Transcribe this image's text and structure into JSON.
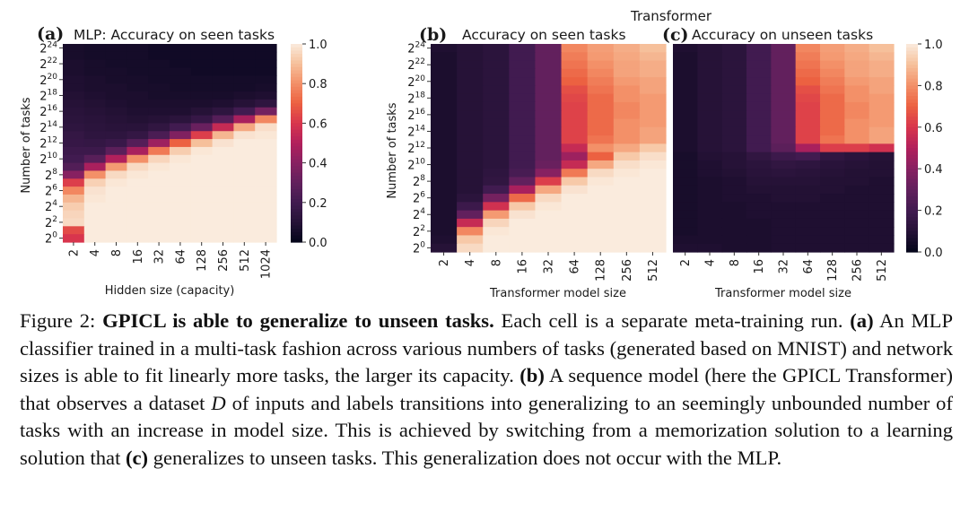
{
  "suptitle": "Transformer",
  "chart_data": [
    {
      "type": "heatmap",
      "panel": "(a)",
      "title": "MLP: Accuracy on seen tasks",
      "xlabel": "Hidden size (capacity)",
      "ylabel": "Number of tasks",
      "x_ticks": [
        "2",
        "4",
        "8",
        "16",
        "32",
        "64",
        "128",
        "256",
        "512",
        "1024"
      ],
      "y_tick_exponents": [
        "24",
        "22",
        "20",
        "18",
        "16",
        "14",
        "12",
        "10",
        "8",
        "6",
        "4",
        "2",
        "0"
      ],
      "y_tick_base": "2",
      "rows": 25,
      "cols": 10,
      "values": [
        [
          0.06,
          0.05,
          0.05,
          0.05,
          0.04,
          0.04,
          0.04,
          0.04,
          0.04,
          0.04
        ],
        [
          0.06,
          0.05,
          0.05,
          0.05,
          0.04,
          0.04,
          0.04,
          0.04,
          0.04,
          0.04
        ],
        [
          0.07,
          0.06,
          0.05,
          0.05,
          0.05,
          0.04,
          0.04,
          0.04,
          0.04,
          0.04
        ],
        [
          0.07,
          0.06,
          0.06,
          0.05,
          0.05,
          0.05,
          0.04,
          0.04,
          0.04,
          0.04
        ],
        [
          0.08,
          0.07,
          0.06,
          0.06,
          0.05,
          0.05,
          0.05,
          0.05,
          0.05,
          0.05
        ],
        [
          0.08,
          0.07,
          0.07,
          0.06,
          0.06,
          0.05,
          0.05,
          0.05,
          0.05,
          0.06
        ],
        [
          0.09,
          0.08,
          0.07,
          0.07,
          0.06,
          0.06,
          0.06,
          0.06,
          0.07,
          0.08
        ],
        [
          0.1,
          0.09,
          0.08,
          0.07,
          0.07,
          0.07,
          0.07,
          0.08,
          0.1,
          0.13
        ],
        [
          0.11,
          0.1,
          0.09,
          0.08,
          0.08,
          0.08,
          0.1,
          0.13,
          0.2,
          0.35
        ],
        [
          0.12,
          0.11,
          0.1,
          0.09,
          0.1,
          0.12,
          0.16,
          0.26,
          0.48,
          0.78
        ],
        [
          0.13,
          0.12,
          0.11,
          0.11,
          0.14,
          0.2,
          0.32,
          0.55,
          0.85,
          0.97
        ],
        [
          0.15,
          0.13,
          0.13,
          0.15,
          0.23,
          0.38,
          0.62,
          0.88,
          0.98,
          0.99
        ],
        [
          0.16,
          0.15,
          0.17,
          0.26,
          0.45,
          0.7,
          0.9,
          0.98,
          1.0,
          1.0
        ],
        [
          0.18,
          0.18,
          0.28,
          0.48,
          0.75,
          0.93,
          0.99,
          1.0,
          1.0,
          1.0
        ],
        [
          0.2,
          0.27,
          0.5,
          0.8,
          0.95,
          0.99,
          1.0,
          1.0,
          1.0,
          1.0
        ],
        [
          0.25,
          0.48,
          0.82,
          0.96,
          0.99,
          1.0,
          1.0,
          1.0,
          1.0,
          1.0
        ],
        [
          0.4,
          0.8,
          0.96,
          0.99,
          1.0,
          1.0,
          1.0,
          1.0,
          1.0,
          1.0
        ],
        [
          0.62,
          0.94,
          0.99,
          1.0,
          1.0,
          1.0,
          1.0,
          1.0,
          1.0,
          1.0
        ],
        [
          0.78,
          0.98,
          1.0,
          1.0,
          1.0,
          1.0,
          1.0,
          1.0,
          1.0,
          1.0
        ],
        [
          0.88,
          0.99,
          1.0,
          1.0,
          1.0,
          1.0,
          1.0,
          1.0,
          1.0,
          1.0
        ],
        [
          0.93,
          1.0,
          1.0,
          1.0,
          1.0,
          1.0,
          1.0,
          1.0,
          1.0,
          1.0
        ],
        [
          0.95,
          1.0,
          1.0,
          1.0,
          1.0,
          1.0,
          1.0,
          1.0,
          1.0,
          1.0
        ],
        [
          0.96,
          1.0,
          1.0,
          1.0,
          1.0,
          1.0,
          1.0,
          1.0,
          1.0,
          1.0
        ],
        [
          0.65,
          1.0,
          1.0,
          1.0,
          1.0,
          1.0,
          1.0,
          1.0,
          1.0,
          1.0
        ],
        [
          0.6,
          1.0,
          1.0,
          1.0,
          1.0,
          1.0,
          1.0,
          1.0,
          1.0,
          1.0
        ]
      ],
      "colorbar": {
        "min": 0.0,
        "max": 1.0,
        "ticks": [
          "0.0",
          "0.2",
          "0.4",
          "0.6",
          "0.8",
          "1.0"
        ]
      }
    },
    {
      "type": "heatmap",
      "panel": "(b)",
      "title": "Accuracy on seen tasks",
      "xlabel": "Transformer model size",
      "ylabel": "Number of tasks",
      "x_ticks": [
        "2",
        "4",
        "8",
        "16",
        "32",
        "64",
        "128",
        "256",
        "512"
      ],
      "y_tick_exponents": [
        "24",
        "22",
        "20",
        "18",
        "16",
        "14",
        "12",
        "10",
        "8",
        "6",
        "4",
        "2",
        "0"
      ],
      "y_tick_base": "2",
      "rows": 25,
      "cols": 9,
      "values": [
        [
          0.08,
          0.1,
          0.12,
          0.2,
          0.3,
          0.78,
          0.83,
          0.86,
          0.9
        ],
        [
          0.07,
          0.1,
          0.12,
          0.2,
          0.3,
          0.76,
          0.82,
          0.85,
          0.88
        ],
        [
          0.07,
          0.1,
          0.12,
          0.2,
          0.3,
          0.74,
          0.8,
          0.84,
          0.86
        ],
        [
          0.07,
          0.1,
          0.12,
          0.2,
          0.3,
          0.72,
          0.78,
          0.84,
          0.86
        ],
        [
          0.07,
          0.1,
          0.12,
          0.2,
          0.3,
          0.7,
          0.76,
          0.82,
          0.84
        ],
        [
          0.07,
          0.1,
          0.12,
          0.2,
          0.3,
          0.66,
          0.74,
          0.8,
          0.84
        ],
        [
          0.07,
          0.1,
          0.12,
          0.2,
          0.3,
          0.64,
          0.72,
          0.8,
          0.82
        ],
        [
          0.07,
          0.1,
          0.12,
          0.2,
          0.3,
          0.63,
          0.72,
          0.78,
          0.82
        ],
        [
          0.07,
          0.1,
          0.12,
          0.2,
          0.3,
          0.63,
          0.72,
          0.78,
          0.82
        ],
        [
          0.07,
          0.1,
          0.12,
          0.2,
          0.3,
          0.63,
          0.72,
          0.8,
          0.82
        ],
        [
          0.07,
          0.1,
          0.12,
          0.2,
          0.3,
          0.63,
          0.72,
          0.8,
          0.84
        ],
        [
          0.07,
          0.1,
          0.12,
          0.2,
          0.3,
          0.63,
          0.74,
          0.8,
          0.84
        ],
        [
          0.07,
          0.1,
          0.12,
          0.2,
          0.3,
          0.55,
          0.8,
          0.85,
          0.92
        ],
        [
          0.07,
          0.1,
          0.12,
          0.2,
          0.3,
          0.45,
          0.7,
          0.92,
          0.97
        ],
        [
          0.07,
          0.1,
          0.12,
          0.2,
          0.32,
          0.55,
          0.85,
          0.97,
          0.99
        ],
        [
          0.07,
          0.1,
          0.13,
          0.22,
          0.4,
          0.75,
          0.96,
          0.99,
          1.0
        ],
        [
          0.07,
          0.1,
          0.14,
          0.3,
          0.62,
          0.92,
          0.99,
          1.0,
          1.0
        ],
        [
          0.07,
          0.1,
          0.2,
          0.48,
          0.85,
          0.98,
          1.0,
          1.0,
          1.0
        ],
        [
          0.07,
          0.12,
          0.35,
          0.72,
          0.96,
          1.0,
          1.0,
          1.0,
          1.0
        ],
        [
          0.07,
          0.18,
          0.58,
          0.92,
          0.99,
          1.0,
          1.0,
          1.0,
          1.0
        ],
        [
          0.07,
          0.3,
          0.82,
          0.98,
          1.0,
          1.0,
          1.0,
          1.0,
          1.0
        ],
        [
          0.07,
          0.55,
          0.95,
          1.0,
          1.0,
          1.0,
          1.0,
          1.0,
          1.0
        ],
        [
          0.07,
          0.78,
          0.99,
          1.0,
          1.0,
          1.0,
          1.0,
          1.0,
          1.0
        ],
        [
          0.08,
          0.92,
          1.0,
          1.0,
          1.0,
          1.0,
          1.0,
          1.0,
          1.0
        ],
        [
          0.1,
          0.96,
          1.0,
          1.0,
          1.0,
          1.0,
          1.0,
          1.0,
          1.0
        ]
      ],
      "colorbar": null
    },
    {
      "type": "heatmap",
      "panel": "(c)",
      "title": "Accuracy on unseen tasks",
      "xlabel": "Transformer model size",
      "ylabel": "",
      "x_ticks": [
        "2",
        "4",
        "8",
        "16",
        "32",
        "64",
        "128",
        "256",
        "512"
      ],
      "y_tick_exponents": [],
      "y_tick_base": "2",
      "rows": 25,
      "cols": 9,
      "values": [
        [
          0.08,
          0.1,
          0.12,
          0.2,
          0.3,
          0.78,
          0.83,
          0.86,
          0.9
        ],
        [
          0.07,
          0.1,
          0.12,
          0.2,
          0.3,
          0.76,
          0.82,
          0.85,
          0.88
        ],
        [
          0.07,
          0.1,
          0.12,
          0.2,
          0.3,
          0.74,
          0.8,
          0.84,
          0.86
        ],
        [
          0.07,
          0.1,
          0.12,
          0.2,
          0.3,
          0.72,
          0.78,
          0.84,
          0.86
        ],
        [
          0.07,
          0.1,
          0.12,
          0.2,
          0.3,
          0.7,
          0.76,
          0.82,
          0.84
        ],
        [
          0.07,
          0.1,
          0.12,
          0.2,
          0.3,
          0.66,
          0.74,
          0.8,
          0.84
        ],
        [
          0.07,
          0.1,
          0.12,
          0.2,
          0.3,
          0.64,
          0.72,
          0.8,
          0.82
        ],
        [
          0.07,
          0.1,
          0.12,
          0.2,
          0.3,
          0.63,
          0.72,
          0.78,
          0.82
        ],
        [
          0.07,
          0.1,
          0.12,
          0.2,
          0.3,
          0.63,
          0.72,
          0.78,
          0.82
        ],
        [
          0.07,
          0.1,
          0.12,
          0.2,
          0.3,
          0.63,
          0.72,
          0.8,
          0.82
        ],
        [
          0.07,
          0.1,
          0.12,
          0.2,
          0.3,
          0.63,
          0.72,
          0.8,
          0.84
        ],
        [
          0.07,
          0.1,
          0.12,
          0.2,
          0.3,
          0.63,
          0.74,
          0.8,
          0.84
        ],
        [
          0.07,
          0.1,
          0.12,
          0.2,
          0.28,
          0.48,
          0.62,
          0.62,
          0.58
        ],
        [
          0.06,
          0.09,
          0.1,
          0.14,
          0.18,
          0.2,
          0.14,
          0.12,
          0.1
        ],
        [
          0.06,
          0.08,
          0.1,
          0.12,
          0.14,
          0.13,
          0.11,
          0.1,
          0.09
        ],
        [
          0.06,
          0.08,
          0.09,
          0.11,
          0.12,
          0.11,
          0.1,
          0.09,
          0.09
        ],
        [
          0.06,
          0.07,
          0.08,
          0.1,
          0.1,
          0.1,
          0.09,
          0.09,
          0.08
        ],
        [
          0.06,
          0.07,
          0.08,
          0.09,
          0.09,
          0.09,
          0.09,
          0.08,
          0.08
        ],
        [
          0.06,
          0.07,
          0.08,
          0.08,
          0.09,
          0.09,
          0.08,
          0.08,
          0.08
        ],
        [
          0.06,
          0.07,
          0.07,
          0.08,
          0.08,
          0.08,
          0.08,
          0.08,
          0.08
        ],
        [
          0.06,
          0.07,
          0.07,
          0.08,
          0.08,
          0.08,
          0.08,
          0.08,
          0.08
        ],
        [
          0.06,
          0.07,
          0.07,
          0.07,
          0.08,
          0.08,
          0.08,
          0.08,
          0.08
        ],
        [
          0.06,
          0.07,
          0.07,
          0.07,
          0.08,
          0.08,
          0.08,
          0.08,
          0.08
        ],
        [
          0.07,
          0.07,
          0.07,
          0.07,
          0.08,
          0.08,
          0.08,
          0.08,
          0.08
        ],
        [
          0.08,
          0.08,
          0.07,
          0.07,
          0.08,
          0.08,
          0.08,
          0.08,
          0.08
        ]
      ],
      "colorbar": {
        "min": 0.0,
        "max": 1.0,
        "ticks": [
          "0.0",
          "0.2",
          "0.4",
          "0.6",
          "0.8",
          "1.0"
        ]
      }
    }
  ],
  "caption": {
    "figure_label": "Figure 2:",
    "bold_title": "GPICL is able to generalize to unseen tasks.",
    "s1": " Each cell is a separate meta-training run. ",
    "a_label": "(a)",
    "s2": " An MLP classifier trained in a multi-task fashion across various numbers of tasks (generated based on MNIST) and network sizes is able to fit linearly more tasks, the larger its capacity. ",
    "b_label": "(b)",
    "s3": " A sequence model (here the GPICL Transformer) that observes a dataset ",
    "d_symbol": "D",
    "s4": " of inputs and labels transitions into generalizing to an seemingly unbounded number of tasks with an increase in model size. This is achieved by switching from a memorization solution to a learning solution that ",
    "c_label": "(c)",
    "s5": " generalizes to unseen tasks. This generalization does not occur with the MLP."
  }
}
